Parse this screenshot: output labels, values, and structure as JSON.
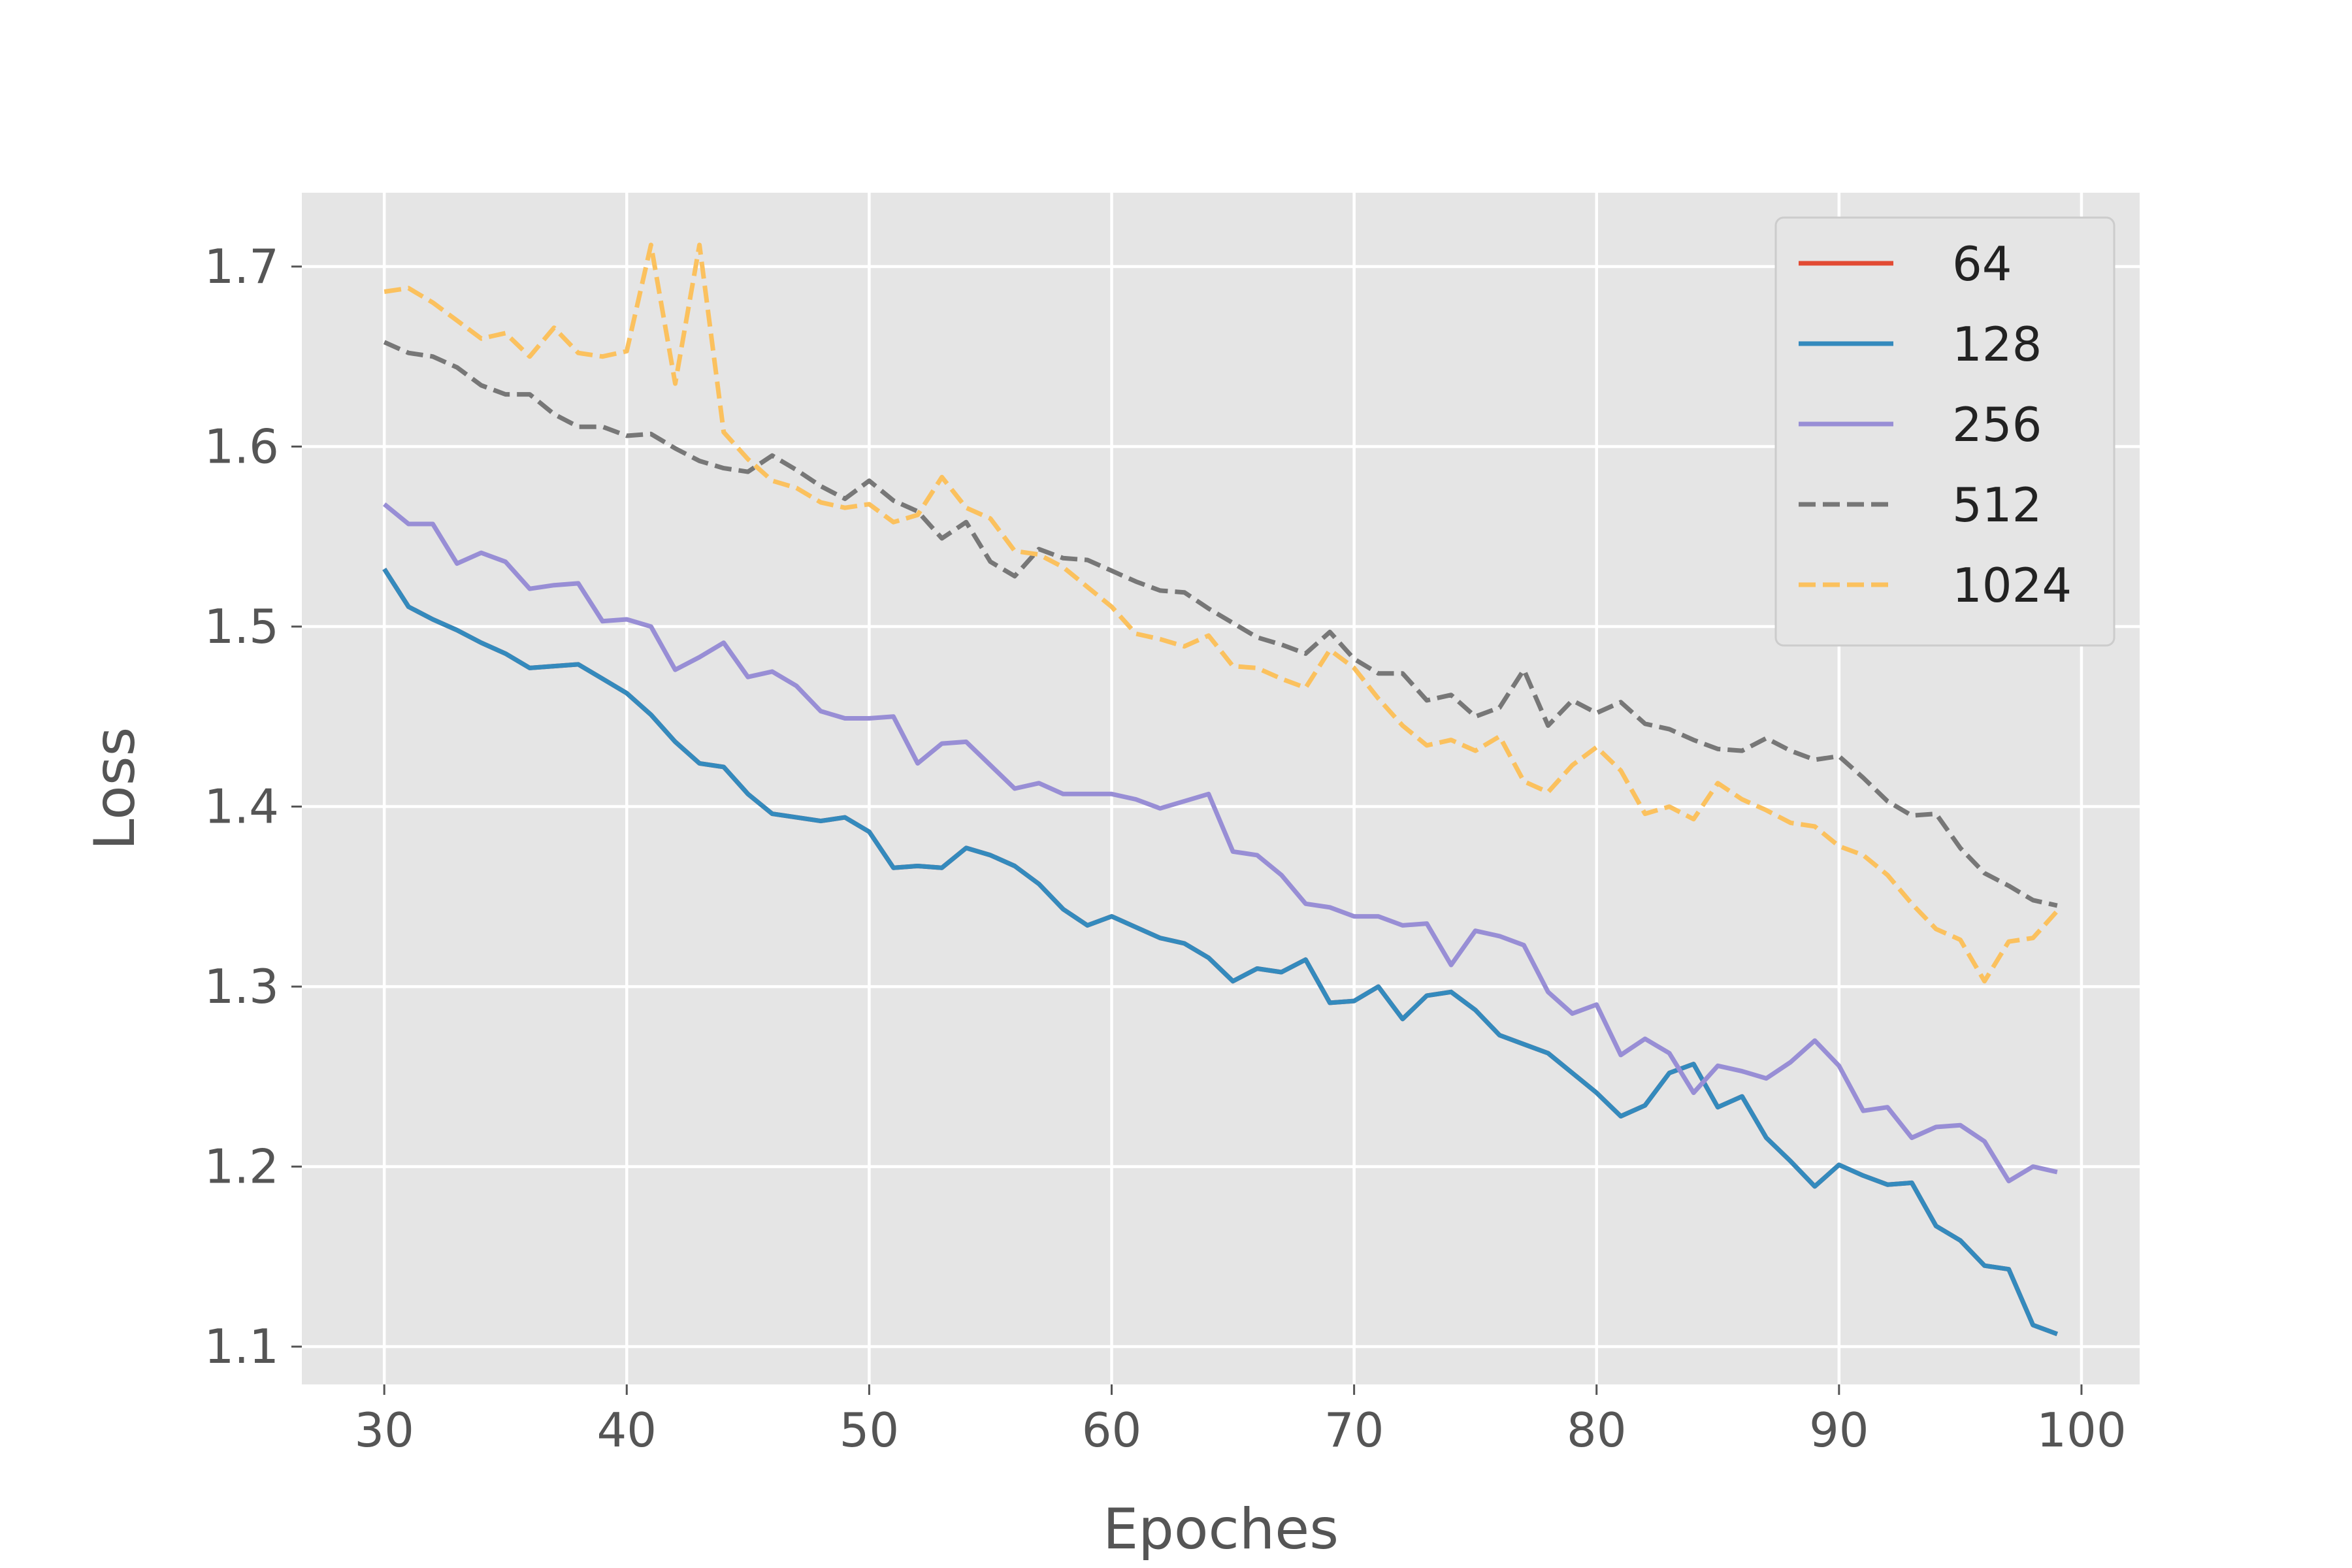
{
  "chart_data": {
    "type": "line",
    "title": "",
    "xlabel": "Epoches",
    "ylabel": "Loss",
    "xlim": [
      26.6,
      102.4
    ],
    "ylim": [
      1.079,
      1.741
    ],
    "x_ticks": [
      30,
      40,
      50,
      60,
      70,
      80,
      90,
      100
    ],
    "y_ticks": [
      1.1,
      1.2,
      1.3,
      1.4,
      1.5,
      1.6,
      1.7
    ],
    "grid": true,
    "legend_position": "top-right",
    "x_start": 30,
    "series": [
      {
        "name": "64",
        "color": "#E24A33",
        "dash": "solid",
        "values": [
          1.532,
          1.511,
          1.504,
          1.498,
          1.491,
          1.485,
          1.477,
          1.478,
          1.479,
          1.471,
          1.463,
          1.451,
          1.436,
          1.424,
          1.422,
          1.407,
          1.396,
          1.394,
          1.392,
          1.394,
          1.386,
          1.366,
          1.367,
          1.366,
          1.377,
          1.373,
          1.367,
          1.357,
          1.343,
          1.334,
          1.339,
          1.333,
          1.327,
          1.324,
          1.316,
          1.303,
          1.31,
          1.308,
          1.315,
          1.291,
          1.292,
          1.3,
          1.282,
          1.295,
          1.297,
          1.287,
          1.273,
          1.268,
          1.263,
          1.252,
          1.241,
          1.228,
          1.234,
          1.252,
          1.257,
          1.233,
          1.239,
          1.216,
          1.203,
          1.189,
          1.201,
          1.195,
          1.19,
          1.191,
          1.167,
          1.159,
          1.145,
          1.143,
          1.112,
          1.107
        ]
      },
      {
        "name": "128",
        "color": "#348ABD",
        "dash": "solid",
        "values": [
          1.532,
          1.511,
          1.504,
          1.498,
          1.491,
          1.485,
          1.477,
          1.478,
          1.479,
          1.471,
          1.463,
          1.451,
          1.436,
          1.424,
          1.422,
          1.407,
          1.396,
          1.394,
          1.392,
          1.394,
          1.386,
          1.366,
          1.367,
          1.366,
          1.377,
          1.373,
          1.367,
          1.357,
          1.343,
          1.334,
          1.339,
          1.333,
          1.327,
          1.324,
          1.316,
          1.303,
          1.31,
          1.308,
          1.315,
          1.291,
          1.292,
          1.3,
          1.282,
          1.295,
          1.297,
          1.287,
          1.273,
          1.268,
          1.263,
          1.252,
          1.241,
          1.228,
          1.234,
          1.252,
          1.257,
          1.233,
          1.239,
          1.216,
          1.203,
          1.189,
          1.201,
          1.195,
          1.19,
          1.191,
          1.167,
          1.159,
          1.145,
          1.143,
          1.112,
          1.107
        ]
      },
      {
        "name": "256",
        "color": "#988ED5",
        "dash": "solid",
        "values": [
          1.568,
          1.557,
          1.557,
          1.535,
          1.541,
          1.536,
          1.521,
          1.523,
          1.524,
          1.503,
          1.504,
          1.5,
          1.476,
          1.483,
          1.491,
          1.472,
          1.475,
          1.467,
          1.453,
          1.449,
          1.449,
          1.45,
          1.424,
          1.435,
          1.436,
          1.423,
          1.41,
          1.413,
          1.407,
          1.407,
          1.407,
          1.404,
          1.399,
          1.403,
          1.407,
          1.375,
          1.373,
          1.362,
          1.346,
          1.344,
          1.339,
          1.339,
          1.334,
          1.335,
          1.312,
          1.331,
          1.328,
          1.323,
          1.297,
          1.285,
          1.29,
          1.262,
          1.271,
          1.263,
          1.241,
          1.256,
          1.253,
          1.249,
          1.258,
          1.27,
          1.256,
          1.231,
          1.233,
          1.216,
          1.222,
          1.223,
          1.214,
          1.192,
          1.2,
          1.197
        ]
      },
      {
        "name": "512",
        "color": "#777777",
        "dash": "dashed",
        "values": [
          1.658,
          1.652,
          1.65,
          1.644,
          1.634,
          1.629,
          1.629,
          1.618,
          1.611,
          1.611,
          1.606,
          1.607,
          1.599,
          1.592,
          1.588,
          1.586,
          1.595,
          1.587,
          1.578,
          1.571,
          1.581,
          1.57,
          1.564,
          1.549,
          1.558,
          1.536,
          1.528,
          1.543,
          1.538,
          1.537,
          1.531,
          1.525,
          1.52,
          1.519,
          1.51,
          1.502,
          1.494,
          1.49,
          1.485,
          1.497,
          1.482,
          1.474,
          1.474,
          1.459,
          1.462,
          1.45,
          1.455,
          1.476,
          1.445,
          1.459,
          1.452,
          1.458,
          1.446,
          1.443,
          1.437,
          1.432,
          1.431,
          1.438,
          1.431,
          1.426,
          1.428,
          1.416,
          1.403,
          1.395,
          1.396,
          1.377,
          1.363,
          1.356,
          1.348,
          1.345
        ]
      },
      {
        "name": "1024",
        "color": "#FBC15E",
        "dash": "dashed",
        "values": [
          1.686,
          1.688,
          1.68,
          1.67,
          1.66,
          1.663,
          1.65,
          1.666,
          1.652,
          1.65,
          1.653,
          1.712,
          1.635,
          1.712,
          1.608,
          1.593,
          1.581,
          1.577,
          1.569,
          1.566,
          1.568,
          1.558,
          1.562,
          1.583,
          1.566,
          1.56,
          1.542,
          1.54,
          1.533,
          1.522,
          1.511,
          1.496,
          1.493,
          1.489,
          1.495,
          1.478,
          1.477,
          1.471,
          1.466,
          1.487,
          1.477,
          1.46,
          1.445,
          1.434,
          1.437,
          1.431,
          1.439,
          1.414,
          1.408,
          1.423,
          1.433,
          1.42,
          1.396,
          1.4,
          1.393,
          1.413,
          1.404,
          1.398,
          1.391,
          1.389,
          1.378,
          1.373,
          1.362,
          1.346,
          1.332,
          1.326,
          1.303,
          1.325,
          1.327,
          1.342
        ]
      }
    ]
  }
}
